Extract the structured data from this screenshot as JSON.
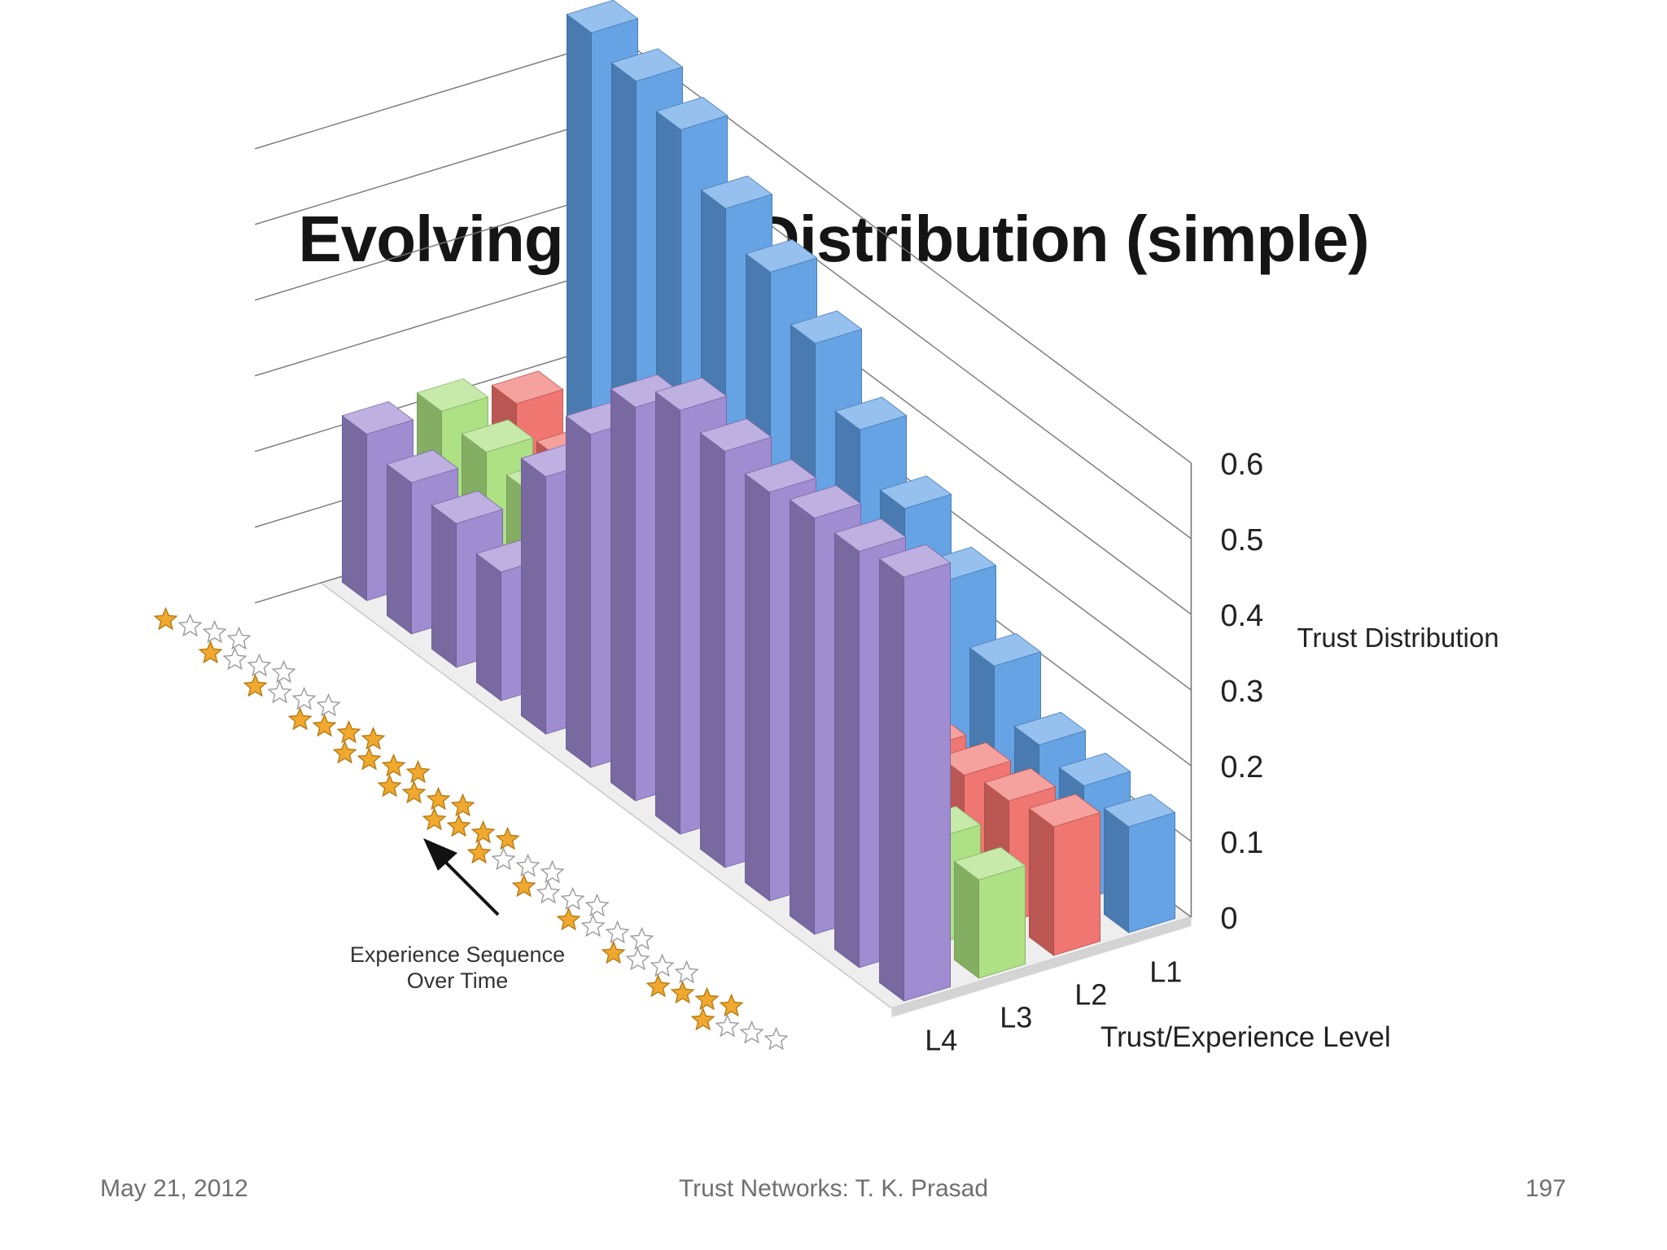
{
  "slide": {
    "title": "Evolving Trust Distribution (simple)",
    "footer_date": "May 21, 2012",
    "footer_center": "Trust Networks: T. K. Prasad",
    "footer_page": "197"
  },
  "chart_data": {
    "type": "bar",
    "subtype": "3d-clustered-columns",
    "title": "Evolving Trust Distribution (simple)",
    "zlabel": "Trust Distribution",
    "xlabel": "Trust/Experience Level",
    "time_axis_label": "Experience Sequence Over Time",
    "levels": [
      "L4",
      "L3",
      "L2",
      "L1"
    ],
    "level_colors": {
      "L4": "#9b86cf",
      "L3": "#a9df7e",
      "L2": "#ef6f6a",
      "L1": "#5d9ee3"
    },
    "z_ticks": [
      "0",
      "0.1",
      "0.2",
      "0.3",
      "0.4",
      "0.5",
      "0.6"
    ],
    "zlim": [
      0,
      0.6
    ],
    "experience_ratings": [
      1,
      4,
      1,
      1,
      1,
      1,
      4,
      4,
      4,
      4,
      1,
      1,
      1
    ],
    "star_colors": {
      "filled": "#f0a92e",
      "empty": "#ffffff",
      "outline": "#9a9a9a"
    },
    "series": [
      {
        "level": "L4",
        "values": [
          0.56,
          0.55,
          0.55,
          0.54,
          0.55,
          0.56,
          0.52,
          0.44,
          0.34,
          0.17,
          0.19,
          0.2,
          0.22
        ]
      },
      {
        "level": "L3",
        "values": [
          0.13,
          0.14,
          0.14,
          0.14,
          0.15,
          0.15,
          0.16,
          0.16,
          0.17,
          0.18,
          0.2,
          0.21,
          0.22
        ]
      },
      {
        "level": "L2",
        "values": [
          0.17,
          0.16,
          0.15,
          0.14,
          0.13,
          0.12,
          0.12,
          0.12,
          0.13,
          0.14,
          0.16,
          0.17,
          0.2
        ]
      },
      {
        "level": "L1",
        "values": [
          0.14,
          0.15,
          0.16,
          0.22,
          0.29,
          0.34,
          0.4,
          0.47,
          0.52,
          0.56,
          0.62,
          0.64,
          0.66
        ]
      }
    ],
    "grid": true
  }
}
